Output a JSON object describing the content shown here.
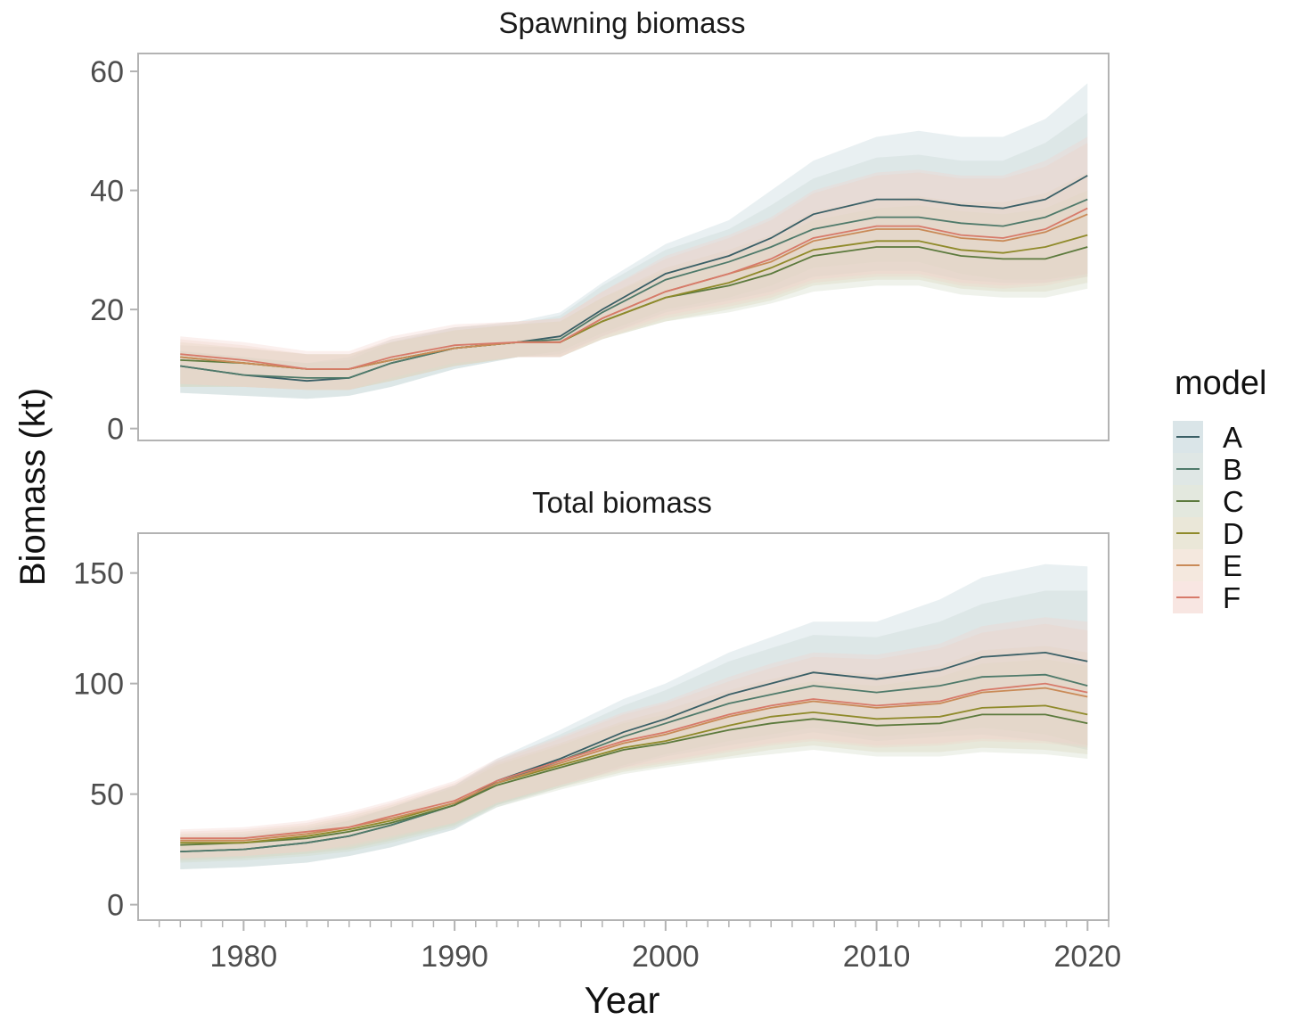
{
  "chart_data": {
    "type": "line",
    "ylabel": "Biomass (kt)",
    "xlabel": "Year",
    "x_ticks": [
      1980,
      1990,
      2000,
      2010,
      2020
    ],
    "xlim": [
      1975,
      2021
    ],
    "legend": {
      "title": "model",
      "position": "right",
      "labels": [
        "A",
        "B",
        "C",
        "D",
        "E",
        "F"
      ]
    },
    "colors": {
      "A": "#3a5f66",
      "B": "#4f7a6a",
      "C": "#5c7a3d",
      "D": "#8f8a2a",
      "E": "#c98a57",
      "F": "#d77a6a"
    },
    "fill_colors": {
      "A": "#bccfd6",
      "B": "#c5d4d0",
      "C": "#ccd6c2",
      "D": "#d8d3b8",
      "E": "#ebd5c3",
      "F": "#f2d1cb"
    },
    "panels": [
      {
        "title": "Spawning biomass",
        "ylim": [
          -2,
          63
        ],
        "y_ticks": [
          0,
          20,
          40,
          60
        ],
        "x": [
          1977,
          1980,
          1983,
          1985,
          1987,
          1990,
          1993,
          1995,
          1997,
          2000,
          2003,
          2005,
          2007,
          2010,
          2012,
          2014,
          2016,
          2018,
          2020
        ],
        "series": [
          {
            "name": "A",
            "values": [
              10.5,
              9.0,
              8.0,
              8.5,
              11.0,
              13.5,
              14.5,
              15.5,
              20.0,
              26.0,
              29.0,
              32.0,
              36.0,
              38.5,
              38.5,
              37.5,
              37.0,
              38.5,
              42.5
            ],
            "lower": [
              6.0,
              5.5,
              5.0,
              5.5,
              7.0,
              10.0,
              12.0,
              13.0,
              16.0,
              20.0,
              22.0,
              24.0,
              27.0,
              28.0,
              28.0,
              26.0,
              25.0,
              25.0,
              26.0
            ],
            "upper": [
              13.0,
              12.0,
              11.0,
              12.0,
              15.0,
              17.0,
              18.0,
              19.5,
              24.5,
              31.0,
              35.0,
              40.0,
              45.0,
              49.0,
              50.0,
              49.0,
              49.0,
              52.0,
              58.0
            ]
          },
          {
            "name": "B",
            "values": [
              10.5,
              9.0,
              8.5,
              8.5,
              11.0,
              13.5,
              14.5,
              15.0,
              19.5,
              25.0,
              28.0,
              30.5,
              33.5,
              35.5,
              35.5,
              34.5,
              34.0,
              35.5,
              38.5
            ],
            "lower": [
              6.0,
              5.5,
              5.0,
              5.5,
              7.0,
              10.0,
              12.0,
              12.5,
              15.5,
              19.5,
              21.5,
              23.0,
              25.5,
              26.5,
              26.5,
              25.0,
              24.5,
              24.5,
              25.5
            ],
            "upper": [
              13.0,
              12.0,
              11.0,
              11.5,
              14.5,
              17.0,
              17.5,
              19.0,
              24.0,
              30.0,
              33.5,
              37.5,
              42.0,
              45.5,
              46.0,
              45.0,
              45.0,
              48.0,
              53.0
            ]
          },
          {
            "name": "C",
            "values": [
              11.5,
              11.0,
              10.0,
              10.0,
              11.5,
              13.5,
              14.5,
              14.5,
              18.0,
              22.0,
              24.0,
              26.0,
              29.0,
              30.5,
              30.5,
              29.0,
              28.5,
              28.5,
              30.5
            ],
            "lower": [
              7.0,
              7.0,
              6.5,
              6.5,
              8.0,
              10.5,
              12.0,
              12.0,
              15.0,
              18.0,
              19.5,
              21.0,
              23.0,
              24.0,
              24.0,
              22.5,
              22.0,
              22.0,
              23.5
            ],
            "upper": [
              14.0,
              13.5,
              12.5,
              12.5,
              14.5,
              16.5,
              17.5,
              18.0,
              22.0,
              26.5,
              29.0,
              31.5,
              35.0,
              37.0,
              37.5,
              36.5,
              36.0,
              37.0,
              40.0
            ]
          },
          {
            "name": "D",
            "values": [
              12.0,
              11.0,
              10.0,
              10.0,
              11.5,
              13.5,
              14.5,
              14.5,
              18.0,
              22.0,
              24.5,
              27.0,
              30.0,
              31.5,
              31.5,
              30.0,
              29.5,
              30.5,
              32.5
            ],
            "lower": [
              7.0,
              7.0,
              6.5,
              6.5,
              8.0,
              10.5,
              12.0,
              12.0,
              15.0,
              18.0,
              20.0,
              21.5,
              24.0,
              25.0,
              25.0,
              23.5,
              23.0,
              23.0,
              24.5
            ],
            "upper": [
              14.5,
              13.5,
              12.5,
              12.5,
              14.5,
              16.5,
              17.5,
              18.0,
              22.0,
              27.0,
              30.0,
              32.5,
              36.5,
              38.5,
              39.0,
              38.0,
              38.0,
              39.5,
              43.0
            ]
          },
          {
            "name": "E",
            "values": [
              12.0,
              11.0,
              10.0,
              10.0,
              11.5,
              13.5,
              14.5,
              14.5,
              18.5,
              23.0,
              26.0,
              28.0,
              31.5,
              33.5,
              33.5,
              32.0,
              31.5,
              33.0,
              36.0
            ],
            "lower": [
              7.5,
              7.0,
              6.5,
              6.5,
              8.0,
              10.5,
              12.0,
              12.0,
              15.0,
              18.5,
              20.5,
              22.0,
              24.5,
              25.5,
              25.5,
              24.0,
              23.5,
              24.0,
              25.5
            ],
            "upper": [
              15.0,
              14.0,
              12.5,
              12.5,
              15.0,
              17.0,
              18.0,
              18.5,
              23.0,
              28.5,
              32.0,
              35.0,
              39.5,
              42.5,
              43.0,
              42.0,
              42.0,
              44.0,
              48.0
            ]
          },
          {
            "name": "F",
            "values": [
              12.5,
              11.5,
              10.0,
              10.0,
              12.0,
              14.0,
              14.5,
              14.5,
              18.5,
              23.0,
              26.0,
              28.5,
              32.0,
              34.0,
              34.0,
              32.5,
              32.0,
              33.5,
              37.0
            ],
            "lower": [
              7.5,
              7.0,
              6.5,
              6.5,
              8.5,
              11.0,
              12.0,
              12.0,
              15.5,
              19.0,
              21.0,
              22.5,
              25.0,
              26.0,
              26.0,
              24.5,
              24.0,
              24.5,
              26.0
            ],
            "upper": [
              15.5,
              14.5,
              13.0,
              13.0,
              15.5,
              17.5,
              18.0,
              18.5,
              23.0,
              29.0,
              32.5,
              35.5,
              40.0,
              43.0,
              43.5,
              42.5,
              42.5,
              45.0,
              49.0
            ]
          }
        ]
      },
      {
        "title": "Total biomass",
        "ylim": [
          -7,
          168
        ],
        "y_ticks": [
          0,
          50,
          100,
          150
        ],
        "x": [
          1977,
          1980,
          1983,
          1985,
          1987,
          1990,
          1992,
          1995,
          1998,
          2000,
          2003,
          2005,
          2007,
          2010,
          2013,
          2015,
          2018,
          2020
        ],
        "series": [
          {
            "name": "A",
            "values": [
              24,
              25,
              28,
              31,
              36,
              45,
              56,
              66,
              78,
              84,
              95,
              100,
              105,
              102,
              106,
              112,
              114,
              110
            ],
            "lower": [
              16,
              17,
              19,
              22,
              26,
              34,
              45,
              54,
              63,
              68,
              74,
              77,
              80,
              76,
              78,
              80,
              77,
              72
            ],
            "upper": [
              29,
              31,
              34,
              38,
              44,
              54,
              66,
              79,
              93,
              100,
              114,
              121,
              128,
              128,
              138,
              148,
              154,
              153
            ]
          },
          {
            "name": "B",
            "values": [
              24,
              25,
              28,
              31,
              36,
              45,
              55,
              65,
              76,
              82,
              91,
              95,
              99,
              96,
              99,
              103,
              104,
              99
            ],
            "lower": [
              16,
              17,
              19,
              22,
              26,
              34,
              44,
              53,
              62,
              67,
              72,
              75,
              78,
              74,
              76,
              77,
              74,
              70
            ],
            "upper": [
              29,
              31,
              34,
              38,
              44,
              54,
              65,
              77,
              90,
              97,
              110,
              116,
              122,
              121,
              128,
              136,
              142,
              142
            ]
          },
          {
            "name": "C",
            "values": [
              27,
              28,
              30,
              33,
              37,
              45,
              54,
              62,
              70,
              73,
              79,
              82,
              84,
              81,
              82,
              86,
              86,
              82
            ],
            "lower": [
              19,
              20,
              22,
              24,
              28,
              35,
              44,
              52,
              59,
              62,
              66,
              68,
              70,
              67,
              67,
              69,
              68,
              66
            ],
            "upper": [
              31,
              32,
              35,
              39,
              44,
              53,
              63,
              72,
              82,
              86,
              94,
              98,
              101,
              99,
              103,
              109,
              111,
              108
            ]
          },
          {
            "name": "D",
            "values": [
              28,
              28,
              31,
              34,
              38,
              46,
              55,
              63,
              71,
              74,
              81,
              85,
              87,
              84,
              85,
              89,
              90,
              86
            ],
            "lower": [
              20,
              21,
              23,
              25,
              29,
              36,
              45,
              53,
              60,
              63,
              67,
              70,
              72,
              69,
              69,
              71,
              70,
              68
            ],
            "upper": [
              32,
              33,
              36,
              40,
              45,
              54,
              64,
              73,
              83,
              88,
              97,
              102,
              106,
              104,
              108,
              115,
              117,
              114
            ]
          },
          {
            "name": "E",
            "values": [
              29,
              29,
              32,
              35,
              39,
              46,
              55,
              64,
              73,
              77,
              85,
              89,
              92,
              89,
              91,
              96,
              98,
              94
            ],
            "lower": [
              21,
              22,
              24,
              26,
              30,
              37,
              46,
              54,
              61,
              64,
              69,
              72,
              74,
              71,
              72,
              74,
              73,
              71
            ],
            "upper": [
              33,
              34,
              37,
              41,
              46,
              55,
              65,
              75,
              86,
              91,
              101,
              107,
              112,
              111,
              116,
              123,
              127,
              124
            ]
          },
          {
            "name": "F",
            "values": [
              30,
              30,
              33,
              35,
              40,
              47,
              56,
              65,
              74,
              78,
              86,
              90,
              93,
              90,
              92,
              97,
              100,
              96
            ],
            "lower": [
              21,
              22,
              24,
              27,
              31,
              37,
              46,
              54,
              62,
              65,
              70,
              73,
              75,
              72,
              73,
              75,
              74,
              72
            ],
            "upper": [
              34,
              35,
              38,
              42,
              47,
              56,
              66,
              76,
              87,
              92,
              103,
              109,
              114,
              113,
              118,
              126,
              130,
              128
            ]
          }
        ]
      }
    ]
  }
}
